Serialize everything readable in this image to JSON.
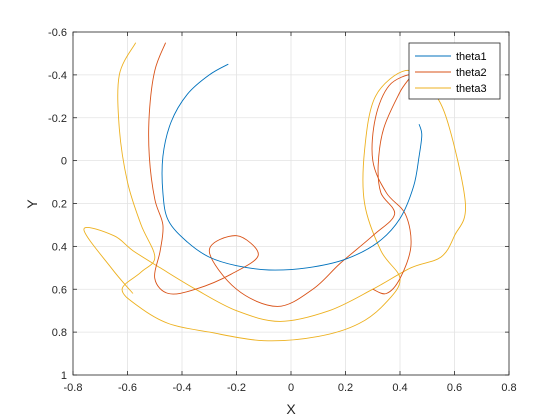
{
  "chart_data": {
    "type": "line",
    "title": "",
    "xlabel": "X",
    "ylabel": "Y",
    "xlim": [
      -0.8,
      0.8
    ],
    "ylim": [
      -0.6,
      1
    ],
    "y_reversed": true,
    "xticks": [
      "-0.8",
      "-0.6",
      "-0.4",
      "-0.2",
      "0",
      "0.2",
      "0.4",
      "0.6",
      "0.8"
    ],
    "yticks": [
      "-0.6",
      "-0.4",
      "-0.2",
      "0",
      "0.2",
      "0.4",
      "0.6",
      "0.8",
      "1"
    ],
    "grid": true,
    "legend_position": "top-right",
    "colors": {
      "theta1": "#0072BD",
      "theta2": "#D95319",
      "theta3": "#EDB120",
      "axis": "#262626",
      "grid": "#e3e3e3"
    },
    "series": [
      {
        "name": "theta1",
        "x": [
          -0.23,
          -0.3,
          -0.38,
          -0.44,
          -0.47,
          -0.47,
          -0.45,
          -0.38,
          -0.3,
          -0.2,
          -0.08,
          0.06,
          0.2,
          0.32,
          0.4,
          0.45,
          0.47,
          0.48,
          0.47
        ],
        "y": [
          -0.45,
          -0.4,
          -0.31,
          -0.18,
          -0.02,
          0.15,
          0.28,
          0.38,
          0.45,
          0.49,
          0.51,
          0.5,
          0.46,
          0.38,
          0.27,
          0.12,
          -0.02,
          -0.12,
          -0.17
        ]
      },
      {
        "name": "theta2",
        "x": [
          -0.46,
          -0.5,
          -0.52,
          -0.52,
          -0.5,
          -0.47,
          -0.48,
          -0.5,
          -0.45,
          -0.35,
          -0.22,
          -0.12,
          -0.2,
          -0.3,
          -0.2,
          -0.05,
          0.08,
          0.18,
          0.3,
          0.38,
          0.33,
          0.32,
          0.34,
          0.4,
          0.44,
          0.36,
          0.31,
          0.3,
          0.35,
          0.42,
          0.44,
          0.4,
          0.35,
          0.3
        ],
        "y": [
          -0.55,
          -0.42,
          -0.22,
          -0.02,
          0.18,
          0.3,
          0.42,
          0.55,
          0.62,
          0.6,
          0.53,
          0.44,
          0.35,
          0.42,
          0.6,
          0.68,
          0.6,
          0.48,
          0.35,
          0.25,
          0.15,
          0.02,
          -0.15,
          -0.32,
          -0.4,
          -0.35,
          -0.2,
          0.0,
          0.15,
          0.25,
          0.4,
          0.55,
          0.62,
          0.6
        ]
      },
      {
        "name": "theta3",
        "x": [
          -0.57,
          -0.63,
          -0.63,
          -0.6,
          -0.55,
          -0.5,
          -0.55,
          -0.62,
          -0.56,
          -0.45,
          -0.3,
          -0.1,
          0.1,
          0.25,
          0.35,
          0.4,
          0.33,
          0.27,
          0.27,
          0.31,
          0.42,
          0.5,
          0.57,
          0.64,
          0.6,
          0.55,
          0.44,
          0.3,
          0.14,
          -0.04,
          -0.2,
          -0.35,
          -0.48,
          -0.58,
          -0.65,
          -0.76,
          -0.66,
          -0.58
        ],
        "y": [
          -0.55,
          -0.4,
          -0.15,
          0.1,
          0.3,
          0.45,
          0.52,
          0.6,
          0.68,
          0.76,
          0.8,
          0.84,
          0.82,
          0.76,
          0.66,
          0.55,
          0.42,
          0.2,
          -0.05,
          -0.3,
          -0.42,
          -0.35,
          -0.2,
          0.2,
          0.35,
          0.45,
          0.5,
          0.6,
          0.7,
          0.75,
          0.7,
          0.6,
          0.5,
          0.42,
          0.35,
          0.32,
          0.5,
          0.62
        ]
      }
    ]
  }
}
